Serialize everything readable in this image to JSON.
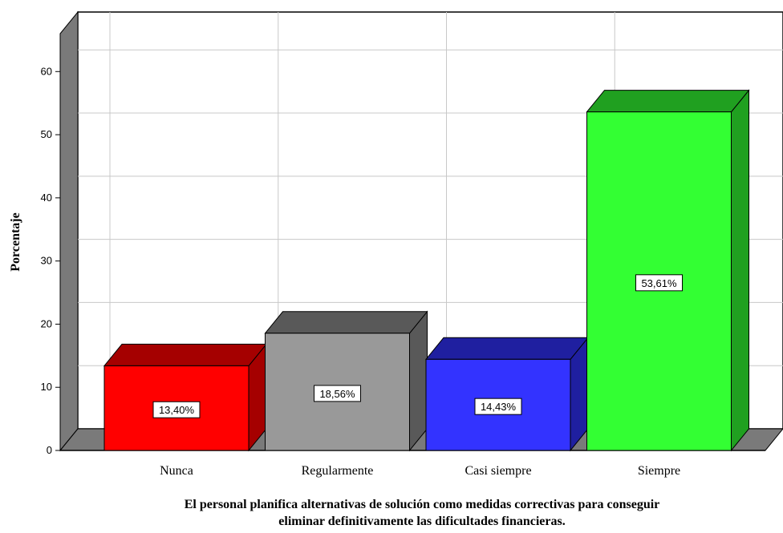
{
  "chart_data": {
    "type": "bar",
    "categories": [
      "Nunca",
      "Regularmente",
      "Casi siempre",
      "Siempre"
    ],
    "values": [
      13.4,
      18.56,
      14.43,
      53.61
    ],
    "data_labels": [
      "13,40%",
      "18,56%",
      "14,43%",
      "53,61%"
    ],
    "colors": [
      "#ff0000",
      "#999999",
      "#3333ff",
      "#33ff33"
    ],
    "side_colors": [
      "#a50000",
      "#595959",
      "#1f1fa0",
      "#20a020"
    ],
    "ylabel": "Porcentaje",
    "xlabel_lines": [
      "El personal planifica alternativas de solución como medidas correctivas para conseguir",
      "eliminar definitivamente las dificultades financieras."
    ],
    "ylim": [
      0,
      66
    ],
    "yticks": [
      0,
      10,
      20,
      30,
      40,
      50,
      60
    ],
    "grid": true,
    "three_d": true
  }
}
